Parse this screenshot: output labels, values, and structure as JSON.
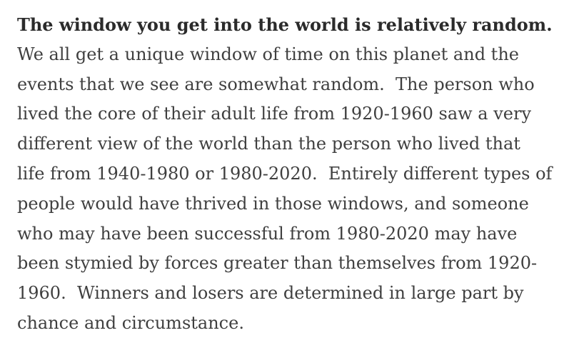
{
  "article": {
    "heading": "The window you get into the world is relatively random.",
    "body_lines": [
      "We all get a unique window of time on this planet and the",
      "events that we see are somewhat random.  The person who",
      "lived the core of their adult life from 1920-1960 saw a very",
      "different view of the world than the person who lived that",
      "life from 1940-1980 or 1980-2020.  Entirely different types of",
      "people would have thrived in those windows, and someone",
      "who may have been successful from 1980-2020 may have",
      "been stymied by forces greater than themselves from 1920-",
      "1960.  Winners and losers are determined in large part by",
      "chance and circumstance."
    ]
  }
}
